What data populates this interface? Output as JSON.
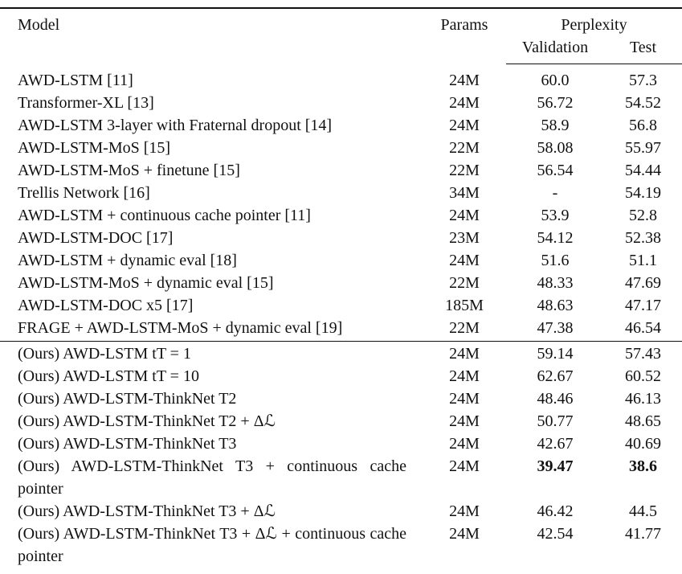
{
  "header": {
    "model": "Model",
    "params": "Params",
    "perplexity": "Perplexity",
    "validation": "Validation",
    "test": "Test"
  },
  "table": {
    "rows": [
      [
        "AWD-LSTM [11]",
        "24M",
        "60.0",
        "57.3"
      ],
      [
        "Transformer-XL [13]",
        "24M",
        "56.72",
        "54.52"
      ],
      [
        "AWD-LSTM 3-layer with Fraternal dropout [14]",
        "24M",
        "58.9",
        "56.8"
      ],
      [
        "AWD-LSTM-MoS [15]",
        "22M",
        "58.08",
        "55.97"
      ],
      [
        "AWD-LSTM-MoS + finetune [15]",
        "22M",
        "56.54",
        "54.44"
      ],
      [
        "Trellis Network [16]",
        "34M",
        "-",
        "54.19"
      ],
      [
        "AWD-LSTM + continuous cache pointer [11]",
        "24M",
        "53.9",
        "52.8"
      ],
      [
        "AWD-LSTM-DOC [17]",
        "23M",
        "54.12",
        "52.38"
      ],
      [
        "AWD-LSTM + dynamic eval [18]",
        "24M",
        "51.6",
        "51.1"
      ],
      [
        "AWD-LSTM-MoS + dynamic eval [15]",
        "22M",
        "48.33",
        "47.69"
      ],
      [
        "AWD-LSTM-DOC x5 [17]",
        "185M",
        "48.63",
        "47.17"
      ],
      [
        "FRAGE + AWD-LSTM-MoS + dynamic eval [19]",
        "22M",
        "47.38",
        "46.54"
      ],
      [
        "(Ours) AWD-LSTM tT = 1",
        "24M",
        "59.14",
        "57.43"
      ],
      [
        "(Ours) AWD-LSTM tT = 10",
        "24M",
        "62.67",
        "60.52"
      ],
      [
        "(Ours) AWD-LSTM-ThinkNet T2",
        "24M",
        "48.46",
        "46.13"
      ],
      [
        "(Ours) AWD-LSTM-ThinkNet T2 + Δℒ",
        "24M",
        "50.77",
        "48.65"
      ],
      [
        "(Ours) AWD-LSTM-ThinkNet T3",
        "24M",
        "42.67",
        "40.69"
      ],
      [
        "(Ours) AWD-LSTM-ThinkNet T3 + continuous cache pointer",
        "24M",
        "39.47",
        "38.6"
      ],
      [
        "(Ours) AWD-LSTM-ThinkNet T3 + Δℒ",
        "24M",
        "46.42",
        "44.5"
      ],
      [
        "(Ours) AWD-LSTM-ThinkNet T3 + Δℒ + continuous cache pointer",
        "24M",
        "42.54",
        "41.77"
      ]
    ]
  }
}
